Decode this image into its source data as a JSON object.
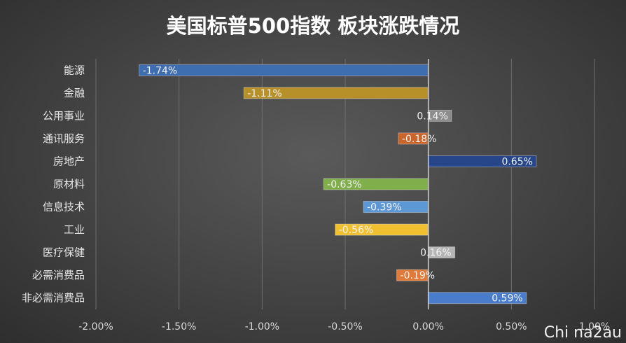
{
  "chart_data": {
    "type": "bar",
    "orientation": "horizontal",
    "title": "美国标普500指数 板块涨跌情况",
    "categories": [
      "能源",
      "金融",
      "公用事业",
      "通讯服务",
      "房地产",
      "原材料",
      "信息技术",
      "工业",
      "医疗保健",
      "必需消费品",
      "非必需消费品"
    ],
    "values": [
      -1.74,
      -1.11,
      0.14,
      -0.18,
      0.65,
      -0.63,
      -0.39,
      -0.56,
      0.16,
      -0.19,
      0.59
    ],
    "value_labels": [
      "-1.74%",
      "-1.11%",
      "0.14%",
      "-0.18%",
      "0.65%",
      "-0.63%",
      "-0.39%",
      "-0.56%",
      "0.16%",
      "-0.19%",
      "0.59%"
    ],
    "colors": [
      "#3e6db0",
      "#b8902a",
      "#8c8c8c",
      "#c8642c",
      "#27468a",
      "#7fae4a",
      "#5c97d6",
      "#f0c030",
      "#b5b5b5",
      "#e07a3a",
      "#4a7ccc"
    ],
    "xlim": [
      -2.0,
      1.0
    ],
    "x_ticks": [
      "-2.00%",
      "-1.50%",
      "-1.00%",
      "-0.50%",
      "0.00%",
      "0.50%",
      "1.00%"
    ],
    "x_tick_values": [
      -2.0,
      -1.5,
      -1.0,
      -0.5,
      0.0,
      0.5,
      1.0
    ],
    "grid": true,
    "xlabel": "",
    "ylabel": ""
  },
  "watermark": "Chi na2au"
}
